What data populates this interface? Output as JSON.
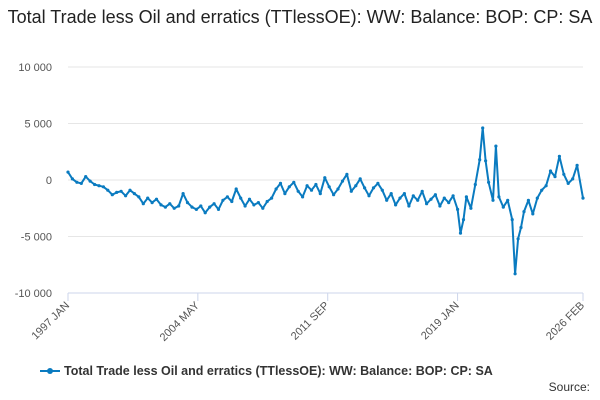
{
  "chart_data": {
    "type": "line",
    "title": "Total Trade less Oil and erratics (TTlessOE): WW: Balance: BOP: CP: SA",
    "xlabel": "",
    "ylabel": "",
    "ylim": [
      -10000,
      10000
    ],
    "y_ticks": [
      {
        "value": 10000,
        "label": "10 000"
      },
      {
        "value": 5000,
        "label": "5 000"
      },
      {
        "value": 0,
        "label": "0"
      },
      {
        "value": -5000,
        "label": "-5 000"
      },
      {
        "value": -10000,
        "label": "-10 000"
      }
    ],
    "x_range": [
      "1997-01",
      "2026-02"
    ],
    "x_ticks": [
      {
        "date": "1997-01",
        "label": "1997 JAN"
      },
      {
        "date": "2004-05",
        "label": "2004 MAY"
      },
      {
        "date": "2011-09",
        "label": "2011 SEP"
      },
      {
        "date": "2019-01",
        "label": "2019 JAN"
      },
      {
        "date": "2026-02",
        "label": "2026 FEB"
      }
    ],
    "grid": true,
    "legend_position": "bottom",
    "series": [
      {
        "name": "Total Trade less Oil and erratics (TTlessOE): WW: Balance: BOP: CP: SA",
        "color": "#0a7bc0",
        "points": [
          [
            "1997-01",
            700
          ],
          [
            "1997-04",
            100
          ],
          [
            "1997-07",
            -200
          ],
          [
            "1997-10",
            -300
          ],
          [
            "1998-01",
            300
          ],
          [
            "1998-04",
            -100
          ],
          [
            "1998-07",
            -400
          ],
          [
            "1998-10",
            -500
          ],
          [
            "1999-01",
            -600
          ],
          [
            "1999-04",
            -900
          ],
          [
            "1999-07",
            -1300
          ],
          [
            "1999-10",
            -1100
          ],
          [
            "2000-01",
            -1000
          ],
          [
            "2000-04",
            -1400
          ],
          [
            "2000-07",
            -900
          ],
          [
            "2000-10",
            -1200
          ],
          [
            "2001-01",
            -1500
          ],
          [
            "2001-04",
            -2100
          ],
          [
            "2001-07",
            -1600
          ],
          [
            "2001-10",
            -2000
          ],
          [
            "2002-01",
            -1700
          ],
          [
            "2002-04",
            -2200
          ],
          [
            "2002-07",
            -2400
          ],
          [
            "2002-10",
            -2100
          ],
          [
            "2003-01",
            -2500
          ],
          [
            "2003-04",
            -2300
          ],
          [
            "2003-07",
            -1200
          ],
          [
            "2003-10",
            -2000
          ],
          [
            "2004-01",
            -2400
          ],
          [
            "2004-04",
            -2600
          ],
          [
            "2004-07",
            -2300
          ],
          [
            "2004-10",
            -2900
          ],
          [
            "2005-01",
            -2400
          ],
          [
            "2005-04",
            -2100
          ],
          [
            "2005-07",
            -2600
          ],
          [
            "2005-10",
            -1800
          ],
          [
            "2006-01",
            -1500
          ],
          [
            "2006-04",
            -1900
          ],
          [
            "2006-07",
            -800
          ],
          [
            "2006-10",
            -1600
          ],
          [
            "2007-01",
            -2300
          ],
          [
            "2007-04",
            -1700
          ],
          [
            "2007-07",
            -2200
          ],
          [
            "2007-10",
            -2000
          ],
          [
            "2008-01",
            -2500
          ],
          [
            "2008-04",
            -1900
          ],
          [
            "2008-07",
            -1600
          ],
          [
            "2008-10",
            -800
          ],
          [
            "2009-01",
            -300
          ],
          [
            "2009-04",
            -1200
          ],
          [
            "2009-07",
            -600
          ],
          [
            "2009-10",
            -200
          ],
          [
            "2010-01",
            -1000
          ],
          [
            "2010-04",
            -1500
          ],
          [
            "2010-07",
            -500
          ],
          [
            "2010-10",
            -900
          ],
          [
            "2011-01",
            -400
          ],
          [
            "2011-04",
            -1200
          ],
          [
            "2011-07",
            200
          ],
          [
            "2011-10",
            -600
          ],
          [
            "2012-01",
            -1300
          ],
          [
            "2012-04",
            -800
          ],
          [
            "2012-07",
            -100
          ],
          [
            "2012-10",
            500
          ],
          [
            "2013-01",
            -1000
          ],
          [
            "2013-04",
            -500
          ],
          [
            "2013-07",
            100
          ],
          [
            "2013-10",
            -700
          ],
          [
            "2014-01",
            -1400
          ],
          [
            "2014-04",
            -700
          ],
          [
            "2014-07",
            -300
          ],
          [
            "2014-10",
            -900
          ],
          [
            "2015-01",
            -1800
          ],
          [
            "2015-04",
            -1200
          ],
          [
            "2015-07",
            -2200
          ],
          [
            "2015-10",
            -1600
          ],
          [
            "2016-01",
            -1200
          ],
          [
            "2016-04",
            -2300
          ],
          [
            "2016-07",
            -1400
          ],
          [
            "2016-10",
            -1800
          ],
          [
            "2017-01",
            -1000
          ],
          [
            "2017-04",
            -2100
          ],
          [
            "2017-07",
            -1700
          ],
          [
            "2017-10",
            -1300
          ],
          [
            "2018-01",
            -2300
          ],
          [
            "2018-04",
            -1600
          ],
          [
            "2018-07",
            -2000
          ],
          [
            "2018-10",
            -1400
          ],
          [
            "2019-01",
            -2600
          ],
          [
            "2019-03",
            -4700
          ],
          [
            "2019-05",
            -3500
          ],
          [
            "2019-07",
            -1500
          ],
          [
            "2019-10",
            -2500
          ],
          [
            "2020-01",
            -400
          ],
          [
            "2020-04",
            1800
          ],
          [
            "2020-06",
            4600
          ],
          [
            "2020-08",
            1700
          ],
          [
            "2020-10",
            -200
          ],
          [
            "2021-01",
            -1800
          ],
          [
            "2021-03",
            3000
          ],
          [
            "2021-05",
            -1500
          ],
          [
            "2021-08",
            -2400
          ],
          [
            "2021-11",
            -1800
          ],
          [
            "2022-02",
            -3500
          ],
          [
            "2022-04",
            -8300
          ],
          [
            "2022-06",
            -5200
          ],
          [
            "2022-08",
            -4200
          ],
          [
            "2022-10",
            -2800
          ],
          [
            "2023-01",
            -1800
          ],
          [
            "2023-04",
            -3000
          ],
          [
            "2023-07",
            -1600
          ],
          [
            "2023-10",
            -900
          ],
          [
            "2024-01",
            -500
          ],
          [
            "2024-04",
            800
          ],
          [
            "2024-07",
            300
          ],
          [
            "2024-10",
            2100
          ],
          [
            "2025-01",
            500
          ],
          [
            "2025-04",
            -300
          ],
          [
            "2025-07",
            100
          ],
          [
            "2025-10",
            1300
          ],
          [
            "2026-02",
            -1600
          ]
        ]
      }
    ]
  },
  "legend": {
    "label": "Total Trade less Oil and erratics (TTlessOE): WW: Balance: BOP: CP: SA"
  },
  "source": "Source:"
}
